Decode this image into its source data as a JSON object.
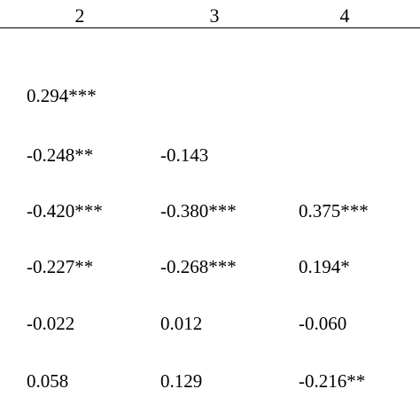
{
  "table": {
    "columns": [
      "2",
      "3",
      "4"
    ],
    "rows": [
      [
        "0.294***",
        "",
        ""
      ],
      [
        "-0.248**",
        "-0.143",
        ""
      ],
      [
        "-0.420***",
        "-0.380***",
        "0.375***"
      ],
      [
        "-0.227**",
        "-0.268***",
        "0.194*"
      ],
      [
        "-0.022",
        "0.012",
        "-0.060"
      ],
      [
        "0.058",
        "0.129",
        "-0.216**"
      ]
    ]
  }
}
